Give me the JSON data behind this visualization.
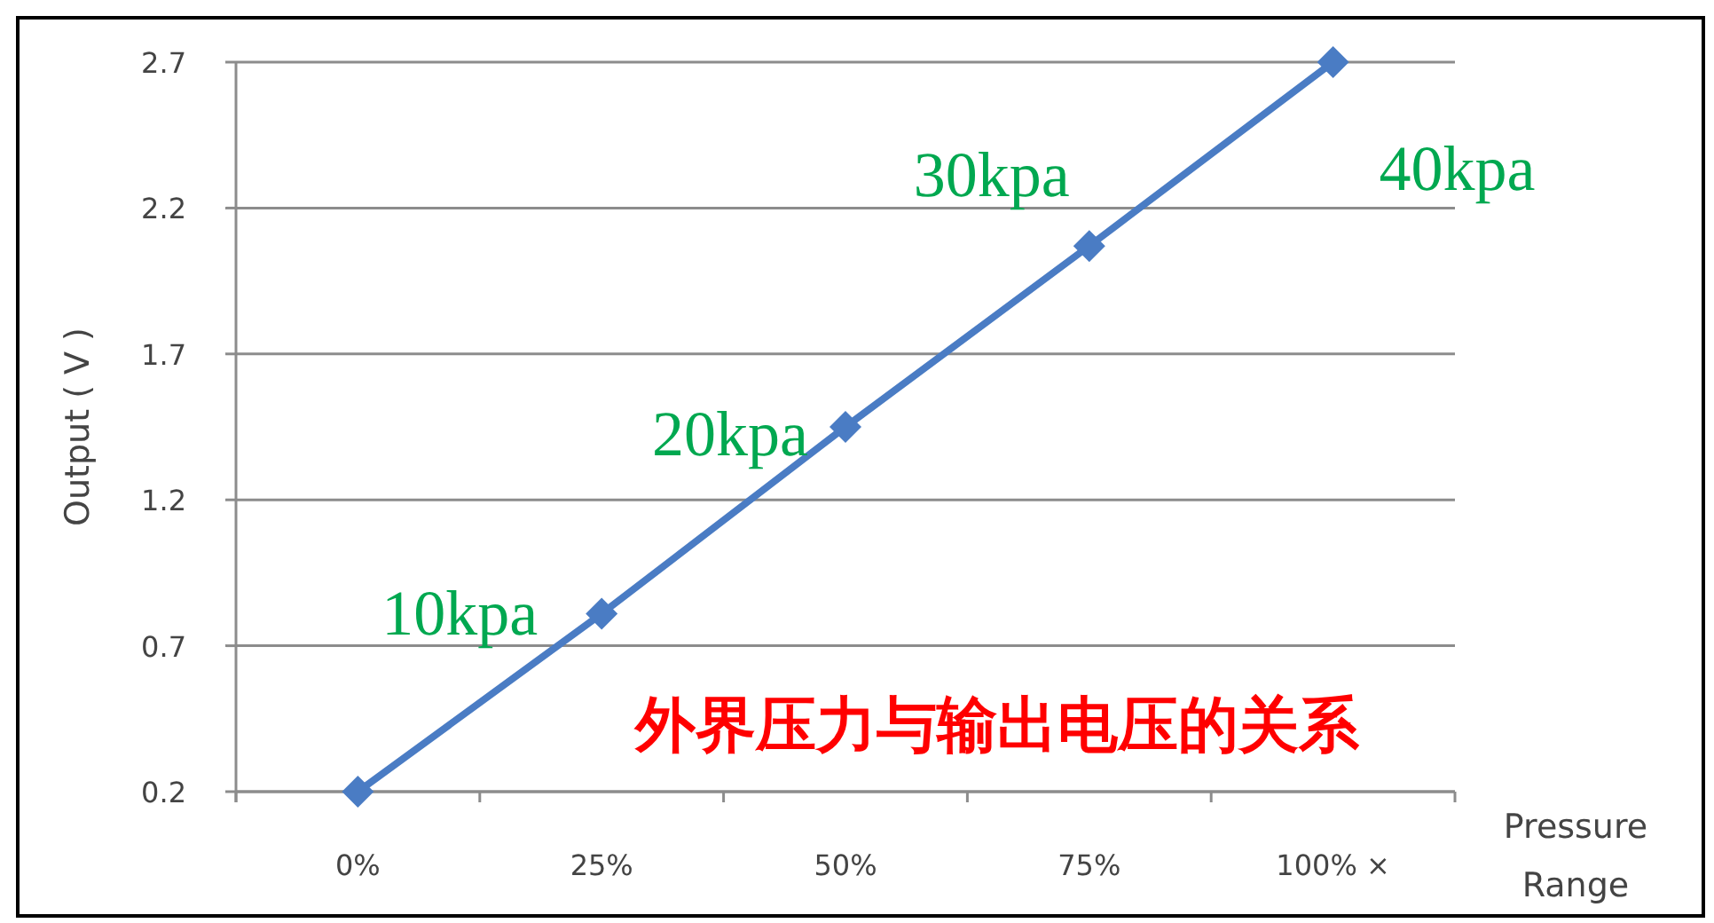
{
  "chart_data": {
    "type": "line",
    "ylabel": "Output ( V )",
    "xlabel": "Pressure Range",
    "categories": [
      "0%",
      "25%",
      "50%",
      "75%",
      "100% ×"
    ],
    "series": [
      {
        "color": "#4a7cc4",
        "values": [
          0.2,
          0.81,
          1.45,
          2.07,
          2.7
        ]
      }
    ],
    "ylim": [
      0.2,
      2.7
    ],
    "yticks": [
      0.2,
      0.7,
      1.2,
      1.7,
      2.2,
      2.7
    ],
    "grid": "y",
    "marker": "diamond",
    "line_style": "solid",
    "annotations": [
      {
        "text": "10kpa",
        "x": "25%",
        "y": 0.81
      },
      {
        "text": "20kpa",
        "x": "50%",
        "y": 1.45
      },
      {
        "text": "30kpa",
        "x": "75%",
        "y": 2.07
      },
      {
        "text": "40kpa",
        "x": "100% ×",
        "y": 2.7
      },
      "外界压力与输出电压的关系"
    ]
  }
}
